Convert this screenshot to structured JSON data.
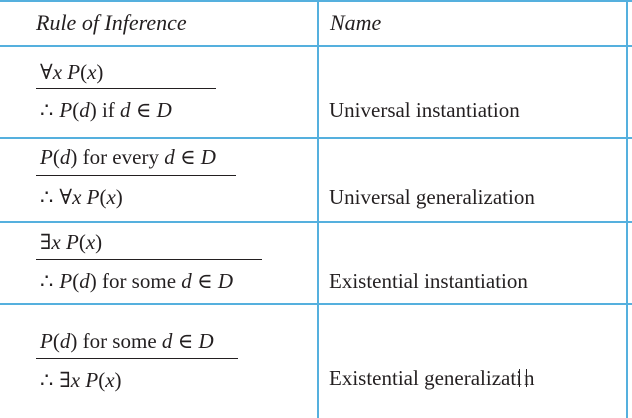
{
  "header": {
    "col1": "Rule of Inference",
    "col2": "Name"
  },
  "rows": [
    {
      "premise": "∀x P(x)",
      "conclusion": "P(d) if d ∈ D",
      "name": "Universal instantiation"
    },
    {
      "premise": "P(d) for every d ∈ D",
      "conclusion": "∀x P(x)",
      "name": "Universal generalization"
    },
    {
      "premise": "∃x P(x)",
      "conclusion": "P(d) for some d ∈ D",
      "name": "Existential instantiation"
    },
    {
      "premise": "P(d) for some d ∈ D",
      "conclusion": "∃x P(x)",
      "name_before_cursor": "Existential generalizati",
      "name_after_cursor": "n"
    }
  ],
  "therefore_symbol": "∴",
  "colors": {
    "rule_lines": "#55b0de",
    "text": "#231f20"
  },
  "icons": {
    "text_cursor": "i-beam-cursor-icon"
  }
}
